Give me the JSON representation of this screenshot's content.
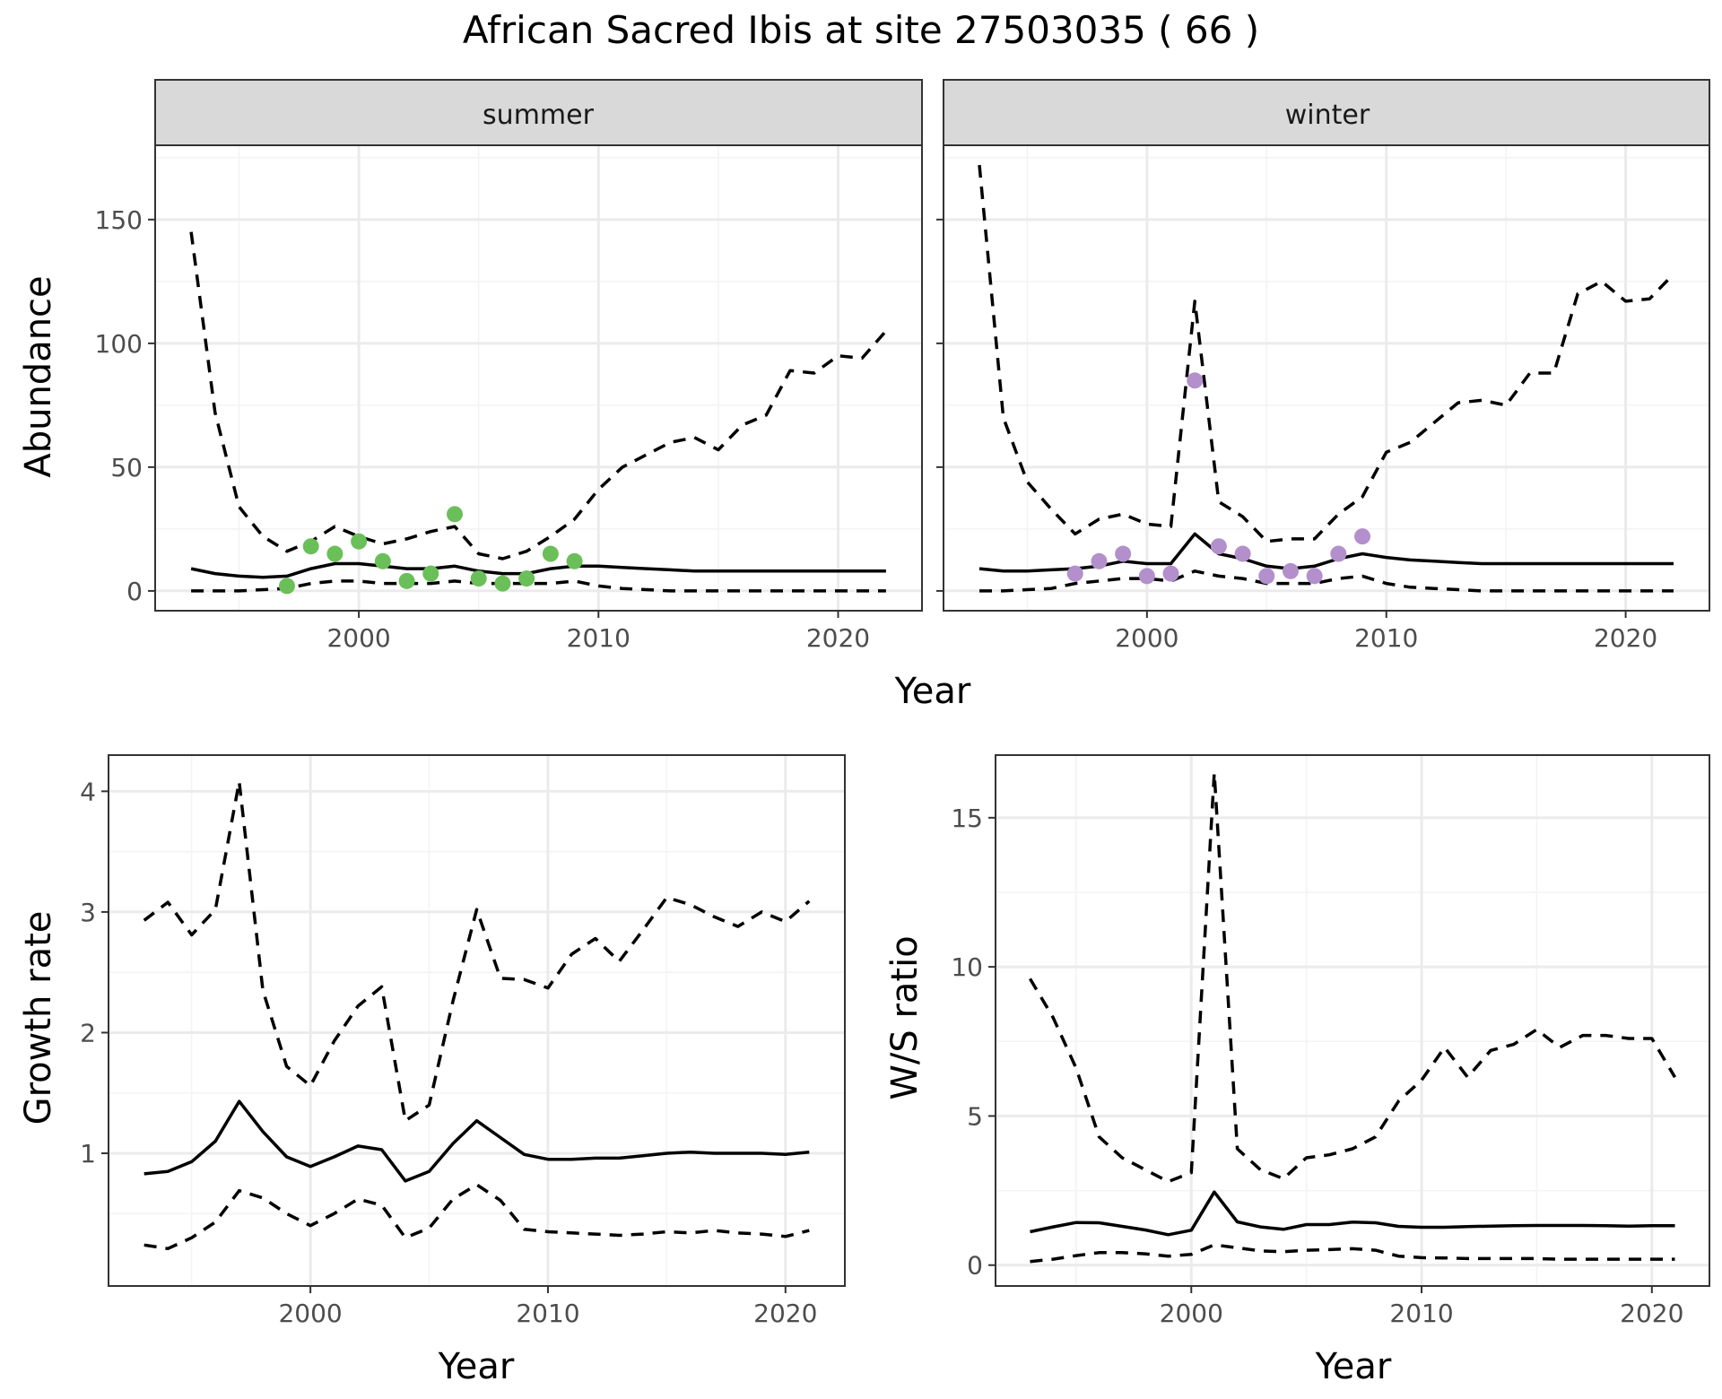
{
  "title": "African Sacred Ibis at site 27503035 ( 66 )",
  "colors": {
    "summer_points": "#6BBF59",
    "winter_points": "#B38FCC",
    "lines": "#000000"
  },
  "chart_data": [
    {
      "type": "line",
      "facet": "summer",
      "strip_label": "summer",
      "xlabel": "Year",
      "ylabel": "Abundance",
      "xlim": [
        1991.5,
        2023.5
      ],
      "ylim": [
        -8,
        180
      ],
      "x_ticks": [
        2000,
        2010,
        2020
      ],
      "y_ticks": [
        0,
        50,
        100,
        150
      ],
      "grid": true,
      "mean": {
        "x": [
          1993,
          1994,
          1995,
          1996,
          1997,
          1998,
          1999,
          2000,
          2001,
          2002,
          2003,
          2004,
          2005,
          2006,
          2007,
          2008,
          2009,
          2010,
          2011,
          2012,
          2013,
          2014,
          2015,
          2016,
          2017,
          2018,
          2019,
          2020,
          2021,
          2022
        ],
        "y": [
          9,
          7,
          6,
          5.5,
          6,
          9,
          11,
          11,
          10,
          9,
          9,
          10,
          8,
          7,
          7,
          9,
          10,
          10,
          9.5,
          9,
          8.5,
          8,
          8,
          8,
          8,
          8,
          8,
          8,
          8,
          8
        ]
      },
      "upper": {
        "x": [
          1993,
          1994,
          1995,
          1996,
          1997,
          1998,
          1999,
          2000,
          2001,
          2002,
          2003,
          2004,
          2005,
          2006,
          2007,
          2008,
          2009,
          2010,
          2011,
          2012,
          2013,
          2014,
          2015,
          2016,
          2017,
          2018,
          2019,
          2020,
          2021,
          2022
        ],
        "y": [
          145,
          72,
          34,
          22,
          16,
          20,
          26,
          22,
          19,
          21,
          24,
          26,
          15,
          13,
          16,
          22,
          29,
          41,
          50,
          55,
          60,
          62,
          57,
          67,
          71,
          89,
          88,
          95,
          94,
          105
        ]
      },
      "lower": {
        "x": [
          1993,
          1994,
          1995,
          1996,
          1997,
          1998,
          1999,
          2000,
          2001,
          2002,
          2003,
          2004,
          2005,
          2006,
          2007,
          2008,
          2009,
          2010,
          2011,
          2012,
          2013,
          2014,
          2015,
          2016,
          2017,
          2018,
          2019,
          2020,
          2021,
          2022
        ],
        "y": [
          0,
          0,
          0,
          0.5,
          1,
          3,
          4,
          4,
          3,
          3,
          3,
          4,
          3,
          3,
          3,
          3,
          4,
          2,
          1,
          0.5,
          0,
          0,
          0,
          0,
          0,
          0,
          0,
          0,
          0,
          0
        ]
      },
      "observed": {
        "x": [
          1997,
          1998,
          1999,
          2000,
          2001,
          2002,
          2003,
          2004,
          2005,
          2006,
          2007,
          2008,
          2009
        ],
        "y": [
          2,
          18,
          15,
          20,
          12,
          4,
          7,
          31,
          5,
          3,
          5,
          15,
          12
        ]
      }
    },
    {
      "type": "line",
      "facet": "winter",
      "strip_label": "winter",
      "xlabel": "Year",
      "ylabel": "Abundance",
      "xlim": [
        1991.5,
        2023.5
      ],
      "ylim": [
        -8,
        180
      ],
      "x_ticks": [
        2000,
        2010,
        2020
      ],
      "y_ticks": [
        0,
        50,
        100,
        150
      ],
      "grid": true,
      "mean": {
        "x": [
          1993,
          1994,
          1995,
          1996,
          1997,
          1998,
          1999,
          2000,
          2001,
          2002,
          2003,
          2004,
          2005,
          2006,
          2007,
          2008,
          2009,
          2010,
          2011,
          2012,
          2013,
          2014,
          2015,
          2016,
          2017,
          2018,
          2019,
          2020,
          2021,
          2022
        ],
        "y": [
          9,
          8,
          8,
          8.5,
          9,
          10,
          12,
          11,
          11,
          23,
          15,
          13,
          10,
          9,
          10,
          13,
          15,
          13.5,
          12.5,
          12,
          11.5,
          11,
          11,
          11,
          11,
          11,
          11,
          11,
          11,
          11
        ]
      },
      "upper": {
        "x": [
          1993,
          1994,
          1995,
          1996,
          1997,
          1998,
          1999,
          2000,
          2001,
          2002,
          2003,
          2004,
          2005,
          2006,
          2007,
          2008,
          2009,
          2010,
          2011,
          2012,
          2013,
          2014,
          2015,
          2016,
          2017,
          2018,
          2019,
          2020,
          2021,
          2022
        ],
        "y": [
          172,
          70,
          44,
          33,
          23,
          29,
          31,
          27,
          26,
          117,
          36,
          30,
          20,
          21,
          21,
          31,
          38,
          56,
          60,
          68,
          76,
          77,
          75,
          88,
          88,
          120,
          125,
          117,
          118,
          128
        ]
      },
      "lower": {
        "x": [
          1993,
          1994,
          1995,
          1996,
          1997,
          1998,
          1999,
          2000,
          2001,
          2002,
          2003,
          2004,
          2005,
          2006,
          2007,
          2008,
          2009,
          2010,
          2011,
          2012,
          2013,
          2014,
          2015,
          2016,
          2017,
          2018,
          2019,
          2020,
          2021,
          2022
        ],
        "y": [
          0,
          0,
          0.5,
          1,
          3,
          4,
          5,
          5,
          4,
          8,
          6,
          5,
          3,
          3,
          3,
          5,
          6,
          3,
          1.5,
          1,
          0.5,
          0,
          0,
          0,
          0,
          0,
          0,
          0,
          0,
          0
        ]
      },
      "observed": {
        "x": [
          1997,
          1998,
          1999,
          2000,
          2001,
          2002,
          2003,
          2004,
          2005,
          2006,
          2007,
          2008,
          2009
        ],
        "y": [
          7,
          12,
          15,
          6,
          7,
          85,
          18,
          15,
          6,
          8,
          6,
          15,
          22
        ]
      }
    },
    {
      "type": "line",
      "facet": "growth",
      "xlabel": "Year",
      "ylabel": "Growth rate",
      "xlim": [
        1991.5,
        2022.5
      ],
      "ylim": [
        -0.1,
        4.3
      ],
      "x_ticks": [
        2000,
        2010,
        2020
      ],
      "y_ticks": [
        1,
        2,
        3,
        4
      ],
      "grid": true,
      "mean": {
        "x": [
          1993,
          1994,
          1995,
          1996,
          1997,
          1998,
          1999,
          2000,
          2001,
          2002,
          2003,
          2004,
          2005,
          2006,
          2007,
          2008,
          2009,
          2010,
          2011,
          2012,
          2013,
          2014,
          2015,
          2016,
          2017,
          2018,
          2019,
          2020,
          2021
        ],
        "y": [
          0.83,
          0.85,
          0.93,
          1.1,
          1.43,
          1.18,
          0.97,
          0.89,
          0.97,
          1.06,
          1.03,
          0.77,
          0.85,
          1.08,
          1.27,
          1.13,
          0.99,
          0.95,
          0.95,
          0.96,
          0.96,
          0.98,
          1.0,
          1.01,
          1.0,
          1.0,
          1.0,
          0.99,
          1.01
        ]
      },
      "upper": {
        "x": [
          1993,
          1994,
          1995,
          1996,
          1997,
          1998,
          1999,
          2000,
          2001,
          2002,
          2003,
          2004,
          2005,
          2006,
          2007,
          2008,
          2009,
          2010,
          2011,
          2012,
          2013,
          2014,
          2015,
          2016,
          2017,
          2018,
          2019,
          2020,
          2021
        ],
        "y": [
          2.93,
          3.08,
          2.81,
          3.02,
          4.08,
          2.35,
          1.72,
          1.56,
          1.93,
          2.22,
          2.38,
          1.27,
          1.4,
          2.26,
          3.02,
          2.45,
          2.44,
          2.37,
          2.65,
          2.78,
          2.59,
          2.85,
          3.12,
          3.06,
          2.96,
          2.88,
          3.0,
          2.92,
          3.09
        ]
      },
      "lower": {
        "x": [
          1993,
          1994,
          1995,
          1996,
          1997,
          1998,
          1999,
          2000,
          2001,
          2002,
          2003,
          2004,
          2005,
          2006,
          2007,
          2008,
          2009,
          2010,
          2011,
          2012,
          2013,
          2014,
          2015,
          2016,
          2017,
          2018,
          2019,
          2020,
          2021
        ],
        "y": [
          0.24,
          0.21,
          0.3,
          0.43,
          0.69,
          0.63,
          0.5,
          0.4,
          0.5,
          0.62,
          0.57,
          0.3,
          0.38,
          0.62,
          0.74,
          0.61,
          0.37,
          0.35,
          0.34,
          0.33,
          0.32,
          0.33,
          0.35,
          0.34,
          0.36,
          0.34,
          0.33,
          0.31,
          0.36
        ]
      }
    },
    {
      "type": "line",
      "facet": "ratio",
      "xlabel": "Year",
      "ylabel": "W/S ratio",
      "xlim": [
        1991.5,
        2022.5
      ],
      "ylim": [
        -0.7,
        17.1
      ],
      "x_ticks": [
        2000,
        2010,
        2020
      ],
      "y_ticks": [
        0,
        5,
        10,
        15
      ],
      "grid": true,
      "mean": {
        "x": [
          1993,
          1994,
          1995,
          1996,
          1997,
          1998,
          1999,
          2000,
          2001,
          2002,
          2003,
          2004,
          2005,
          2006,
          2007,
          2008,
          2009,
          2010,
          2011,
          2012,
          2013,
          2014,
          2015,
          2016,
          2017,
          2018,
          2019,
          2020,
          2021
        ],
        "y": [
          1.12,
          1.28,
          1.43,
          1.42,
          1.3,
          1.18,
          1.02,
          1.17,
          2.45,
          1.45,
          1.28,
          1.2,
          1.36,
          1.36,
          1.44,
          1.42,
          1.3,
          1.27,
          1.27,
          1.29,
          1.31,
          1.32,
          1.33,
          1.33,
          1.33,
          1.32,
          1.31,
          1.32,
          1.32
        ]
      },
      "upper": {
        "x": [
          1993,
          1994,
          1995,
          1996,
          1997,
          1998,
          1999,
          2000,
          2001,
          2002,
          2003,
          2004,
          2005,
          2006,
          2007,
          2008,
          2009,
          2010,
          2011,
          2012,
          2013,
          2014,
          2015,
          2016,
          2017,
          2018,
          2019,
          2020,
          2021
        ],
        "y": [
          9.6,
          8.3,
          6.6,
          4.3,
          3.6,
          3.2,
          2.8,
          3.1,
          16.5,
          3.9,
          3.2,
          2.9,
          3.6,
          3.7,
          3.9,
          4.3,
          5.5,
          6.2,
          7.3,
          6.3,
          7.2,
          7.4,
          7.9,
          7.3,
          7.7,
          7.7,
          7.6,
          7.6,
          6.3
        ]
      },
      "lower": {
        "x": [
          1993,
          1994,
          1995,
          1996,
          1997,
          1998,
          1999,
          2000,
          2001,
          2002,
          2003,
          2004,
          2005,
          2006,
          2007,
          2008,
          2009,
          2010,
          2011,
          2012,
          2013,
          2014,
          2015,
          2016,
          2017,
          2018,
          2019,
          2020,
          2021
        ],
        "y": [
          0.12,
          0.2,
          0.32,
          0.42,
          0.42,
          0.38,
          0.3,
          0.36,
          0.68,
          0.58,
          0.48,
          0.45,
          0.5,
          0.52,
          0.55,
          0.5,
          0.3,
          0.25,
          0.24,
          0.22,
          0.22,
          0.22,
          0.22,
          0.2,
          0.2,
          0.2,
          0.2,
          0.2,
          0.2
        ]
      }
    }
  ]
}
